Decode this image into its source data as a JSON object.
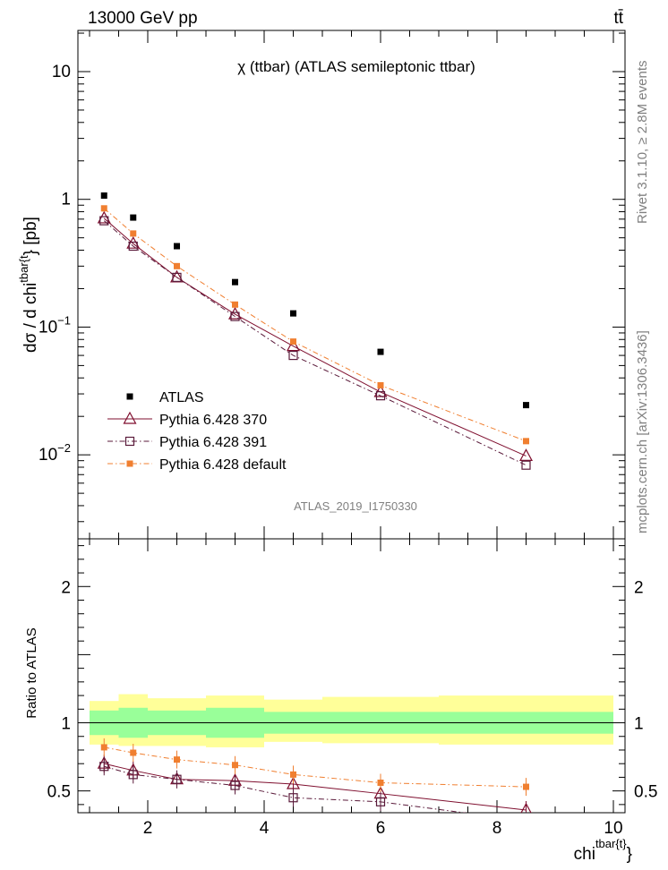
{
  "header": {
    "left_label": "13000 GeV pp",
    "right_label": "tt̄",
    "side_rivet": "Rivet 3.1.10, ≥ 2.8M events",
    "side_site": "mcplots.cern.ch [arXiv:1306.3436]",
    "analysis_id": "ATLAS_2019_I1750330"
  },
  "chart_data": [
    {
      "type": "scatter",
      "title": "χ (ttbar) (ATLAS semileptonic ttbar)",
      "ylabel": "dσ / d chi^{tbar{t}} [pb]",
      "yscale": "log",
      "ylim": [
        0.0022,
        21
      ],
      "xlim": [
        0.8,
        10.2
      ],
      "yticklabels": [
        "10^{-2}",
        "10^{-1}",
        "1",
        "10"
      ],
      "legend_position": "lower-left",
      "x": [
        1.25,
        1.75,
        2.5,
        3.5,
        4.5,
        6.0,
        8.5
      ],
      "series": [
        {
          "name": "ATLAS",
          "color": "#000000",
          "marker": "filled-square",
          "values": [
            1.07,
            0.72,
            0.43,
            0.225,
            0.128,
            0.064,
            0.0245
          ]
        },
        {
          "name": "Pythia 6.428 370",
          "color": "#7f0f2f",
          "marker": "open-triangle",
          "line": "solid",
          "values": [
            0.71,
            0.45,
            0.245,
            0.126,
            0.071,
            0.031,
            0.0098
          ]
        },
        {
          "name": "Pythia 6.428 391",
          "color": "#5a1a3a",
          "marker": "open-square",
          "line": "dashdot",
          "values": [
            0.68,
            0.43,
            0.245,
            0.121,
            0.06,
            0.029,
            0.0083
          ]
        },
        {
          "name": "Pythia 6.428 default",
          "color": "#f07f30",
          "marker": "filled-square",
          "line": "dashdot",
          "values": [
            0.85,
            0.54,
            0.3,
            0.15,
            0.077,
            0.035,
            0.0128
          ]
        }
      ]
    },
    {
      "type": "line",
      "ylabel": "Ratio to ATLAS",
      "xlabel": "chi^{tbar{t}}",
      "ylim": [
        0.34,
        2.35
      ],
      "xlim": [
        0.8,
        10.2
      ],
      "yticks": [
        0.5,
        1,
        2
      ],
      "xticks": [
        2,
        4,
        6,
        8,
        10
      ],
      "bins": [
        [
          1.0,
          1.5
        ],
        [
          1.5,
          2.0
        ],
        [
          2.0,
          3.0
        ],
        [
          3.0,
          4.0
        ],
        [
          4.0,
          5.0
        ],
        [
          5.0,
          7.0
        ],
        [
          7.0,
          10.0
        ]
      ],
      "x": [
        1.25,
        1.75,
        2.5,
        3.5,
        4.5,
        6.0,
        8.5
      ],
      "band_inner": [
        [
          0.91,
          1.09
        ],
        [
          0.89,
          1.11
        ],
        [
          0.91,
          1.09
        ],
        [
          0.89,
          1.11
        ],
        [
          0.92,
          1.08
        ],
        [
          0.92,
          1.08
        ],
        [
          0.92,
          1.08
        ]
      ],
      "band_outer": [
        [
          0.84,
          1.16
        ],
        [
          0.83,
          1.21
        ],
        [
          0.83,
          1.18
        ],
        [
          0.82,
          1.2
        ],
        [
          0.86,
          1.17
        ],
        [
          0.85,
          1.19
        ],
        [
          0.84,
          1.2
        ]
      ],
      "series": [
        {
          "name": "Pythia 6.428 370",
          "color": "#7f0f2f",
          "marker": "open-triangle",
          "line": "solid",
          "values": [
            0.7,
            0.65,
            0.585,
            0.575,
            0.55,
            0.48,
            0.36
          ]
        },
        {
          "name": "Pythia 6.428 391",
          "color": "#5a1a3a",
          "marker": "open-square",
          "line": "dashdot",
          "values": [
            0.68,
            0.62,
            0.585,
            0.54,
            0.45,
            0.42,
            0.28
          ]
        },
        {
          "name": "Pythia 6.428 default",
          "color": "#f07f30",
          "marker": "filled-square",
          "line": "dashdot",
          "values": [
            0.82,
            0.78,
            0.73,
            0.69,
            0.62,
            0.56,
            0.53
          ]
        }
      ]
    }
  ]
}
